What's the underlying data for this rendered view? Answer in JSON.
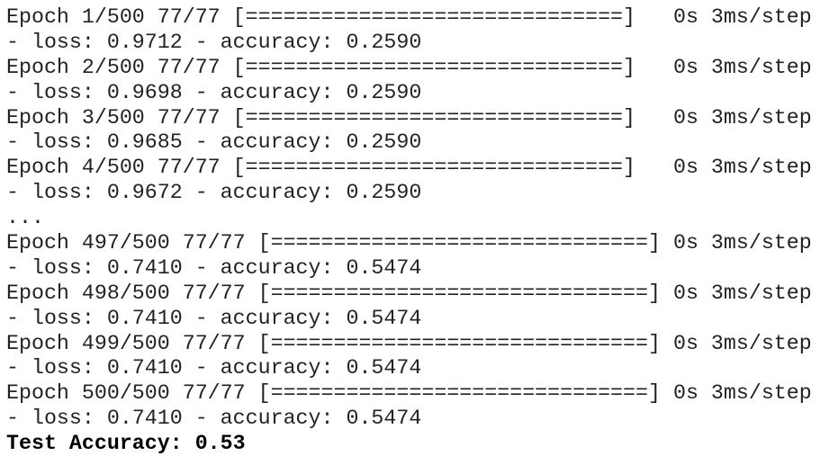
{
  "lines": [
    "Epoch 1/500 77/77 [==============================]   0s 3ms/step",
    "- loss: 0.9712 - accuracy: 0.2590",
    "Epoch 2/500 77/77 [==============================]   0s 3ms/step",
    "- loss: 0.9698 - accuracy: 0.2590",
    "Epoch 3/500 77/77 [==============================]   0s 3ms/step",
    "- loss: 0.9685 - accuracy: 0.2590",
    "Epoch 4/500 77/77 [==============================]   0s 3ms/step",
    "- loss: 0.9672 - accuracy: 0.2590",
    "...",
    "Epoch 497/500 77/77 [==============================] 0s 3ms/step",
    "- loss: 0.7410 - accuracy: 0.5474",
    "Epoch 498/500 77/77 [==============================] 0s 3ms/step",
    "- loss: 0.7410 - accuracy: 0.5474",
    "Epoch 499/500 77/77 [==============================] 0s 3ms/step",
    "- loss: 0.7410 - accuracy: 0.5474",
    "Epoch 500/500 77/77 [==============================] 0s 3ms/step",
    "- loss: 0.7410 - accuracy: 0.5474"
  ],
  "summary": "Test Accuracy: 0.53"
}
